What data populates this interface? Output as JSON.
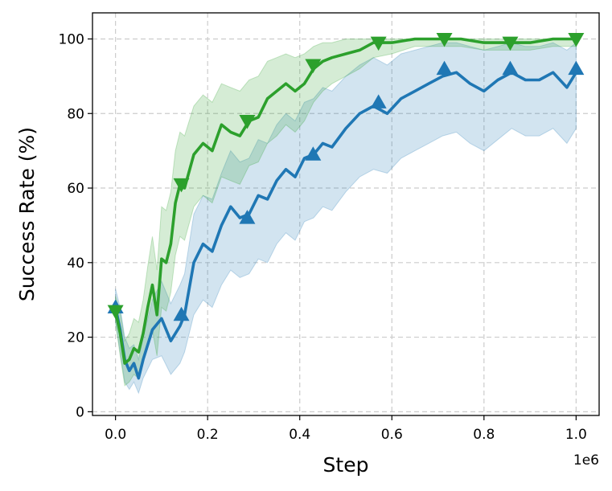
{
  "chart_data": {
    "type": "line",
    "xlabel": "Step",
    "ylabel": "Success Rate (%)",
    "x_offset_label": "1e6",
    "xlim": [
      -0.05,
      1.05
    ],
    "ylim": [
      -1,
      107
    ],
    "x_ticks": [
      0.0,
      0.2,
      0.4,
      0.6,
      0.8,
      1.0
    ],
    "x_tick_labels": [
      "0.0",
      "0.2",
      "0.4",
      "0.6",
      "0.8",
      "1.0"
    ],
    "y_ticks": [
      0,
      20,
      40,
      60,
      80,
      100
    ],
    "y_tick_labels": [
      "0",
      "20",
      "40",
      "60",
      "80",
      "100"
    ],
    "grid": true,
    "series": [
      {
        "color": "#1f77b4",
        "marker": "triangle-up",
        "x": [
          0.0,
          0.01,
          0.02,
          0.03,
          0.04,
          0.05,
          0.06,
          0.08,
          0.1,
          0.12,
          0.14,
          0.15,
          0.17,
          0.19,
          0.21,
          0.23,
          0.25,
          0.27,
          0.29,
          0.31,
          0.33,
          0.35,
          0.37,
          0.39,
          0.41,
          0.43,
          0.45,
          0.47,
          0.5,
          0.53,
          0.56,
          0.59,
          0.62,
          0.65,
          0.68,
          0.71,
          0.74,
          0.77,
          0.8,
          0.83,
          0.86,
          0.89,
          0.92,
          0.95,
          0.98,
          1.0
        ],
        "mean": [
          28,
          22,
          14,
          11,
          13,
          9,
          14,
          22,
          25,
          19,
          23,
          26,
          40,
          45,
          43,
          50,
          55,
          52,
          53,
          58,
          57,
          62,
          65,
          63,
          68,
          69,
          72,
          71,
          76,
          80,
          82,
          80,
          84,
          86,
          88,
          90,
          91,
          88,
          86,
          89,
          91,
          89,
          89,
          91,
          87,
          91
        ],
        "lower": [
          24,
          16,
          8,
          6,
          8,
          5,
          9,
          14,
          15,
          10,
          13,
          16,
          26,
          30,
          28,
          34,
          38,
          36,
          37,
          41,
          40,
          45,
          48,
          46,
          51,
          52,
          55,
          54,
          59,
          63,
          65,
          64,
          68,
          70,
          72,
          74,
          75,
          72,
          70,
          73,
          76,
          74,
          74,
          76,
          72,
          76
        ],
        "upper": [
          33,
          28,
          20,
          17,
          18,
          14,
          20,
          30,
          35,
          29,
          34,
          37,
          53,
          58,
          57,
          64,
          70,
          67,
          68,
          73,
          72,
          77,
          80,
          78,
          83,
          84,
          87,
          86,
          90,
          93,
          95,
          93,
          96,
          97,
          98,
          99,
          99,
          98,
          97,
          98,
          99,
          98,
          98,
          99,
          97,
          99
        ],
        "marker_x": [
          0.0,
          0.143,
          0.286,
          0.429,
          0.571,
          0.714,
          0.857,
          1.0
        ],
        "marker_y": [
          28,
          26,
          52,
          69,
          83,
          92,
          92,
          92
        ]
      },
      {
        "color": "#2ca02c",
        "marker": "triangle-down",
        "x": [
          0.0,
          0.01,
          0.02,
          0.03,
          0.04,
          0.05,
          0.06,
          0.07,
          0.08,
          0.09,
          0.1,
          0.11,
          0.12,
          0.13,
          0.14,
          0.15,
          0.17,
          0.19,
          0.21,
          0.23,
          0.25,
          0.27,
          0.29,
          0.31,
          0.33,
          0.35,
          0.37,
          0.39,
          0.41,
          0.43,
          0.45,
          0.47,
          0.5,
          0.53,
          0.56,
          0.6,
          0.65,
          0.7,
          0.75,
          0.8,
          0.85,
          0.9,
          0.95,
          1.0
        ],
        "mean": [
          27,
          21,
          13,
          14,
          17,
          16,
          21,
          28,
          34,
          26,
          41,
          40,
          45,
          56,
          61,
          60,
          69,
          72,
          70,
          77,
          75,
          74,
          78,
          79,
          84,
          86,
          88,
          86,
          88,
          92,
          94,
          95,
          96,
          97,
          99,
          99,
          100,
          100,
          100,
          99,
          99,
          99,
          100,
          100
        ],
        "lower": [
          24,
          15,
          7,
          8,
          10,
          9,
          13,
          18,
          22,
          15,
          28,
          27,
          32,
          42,
          47,
          46,
          55,
          58,
          56,
          63,
          62,
          61,
          66,
          67,
          72,
          74,
          77,
          75,
          78,
          83,
          86,
          88,
          90,
          92,
          95,
          96,
          98,
          98,
          98,
          97,
          97,
          97,
          98,
          98
        ],
        "upper": [
          31,
          27,
          19,
          21,
          25,
          24,
          30,
          39,
          47,
          38,
          55,
          54,
          59,
          70,
          75,
          74,
          82,
          85,
          83,
          88,
          87,
          86,
          89,
          90,
          94,
          95,
          96,
          95,
          96,
          98,
          99,
          99,
          100,
          100,
          100,
          100,
          100,
          100,
          100,
          100,
          100,
          100,
          100,
          100
        ],
        "marker_x": [
          0.0,
          0.143,
          0.286,
          0.429,
          0.571,
          0.714,
          0.857,
          1.0
        ],
        "marker_y": [
          27,
          61,
          78,
          93,
          99,
          100,
          99,
          100
        ]
      }
    ]
  }
}
